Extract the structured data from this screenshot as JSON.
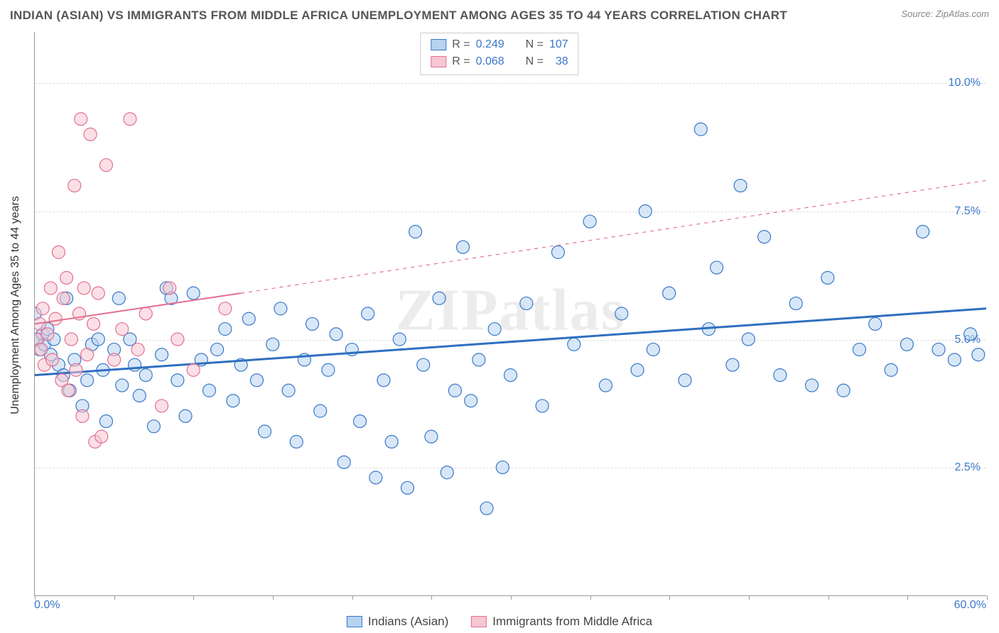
{
  "title": "INDIAN (ASIAN) VS IMMIGRANTS FROM MIDDLE AFRICA UNEMPLOYMENT AMONG AGES 35 TO 44 YEARS CORRELATION CHART",
  "source": "Source: ZipAtlas.com",
  "watermark": "ZIPatlas",
  "y_axis_label": "Unemployment Among Ages 35 to 44 years",
  "x_axis": {
    "min_label": "0.0%",
    "max_label": "60.0%",
    "min": 0,
    "max": 60,
    "label_color": "#3a78c9"
  },
  "y_axis": {
    "min": 0,
    "max": 11,
    "grid_values": [
      2.5,
      5.0,
      7.5,
      10.0
    ],
    "tick_labels": [
      "2.5%",
      "5.0%",
      "7.5%",
      "10.0%"
    ],
    "tick_color": "#3a78c9"
  },
  "legend_top": {
    "rows": [
      {
        "swatch_fill": "#b6d3f0",
        "swatch_border": "#3a78c9",
        "r_label": "R =",
        "r_value": "0.249",
        "n_label": "N =",
        "n_value": "107",
        "value_color": "#3a78c9"
      },
      {
        "swatch_fill": "#f6c6d2",
        "swatch_border": "#e36f91",
        "r_label": "R =",
        "r_value": "0.068",
        "n_label": "N =",
        "n_value": "  38",
        "value_color": "#3a78c9"
      }
    ]
  },
  "legend_bottom": {
    "items": [
      {
        "swatch_fill": "#b6d3f0",
        "swatch_border": "#3a78c9",
        "label": "Indians (Asian)"
      },
      {
        "swatch_fill": "#f6c6d2",
        "swatch_border": "#e36f91",
        "label": "Immigrants from Middle Africa"
      }
    ]
  },
  "chart": {
    "type": "scatter",
    "background_color": "#ffffff",
    "grid_color": "#dddddd",
    "marker_radius": 9,
    "marker_opacity": 0.55,
    "series": [
      {
        "name": "Indians (Asian)",
        "fill": "#b6d3f0",
        "stroke": "#3a78c9",
        "trend": {
          "solid_from": [
            0,
            4.3
          ],
          "solid_to": [
            60,
            5.6
          ],
          "dashed_to": null,
          "color": "#2f6fc0",
          "width": 3
        },
        "points": [
          [
            0.0,
            5.5
          ],
          [
            0.2,
            5.0
          ],
          [
            0.3,
            4.8
          ],
          [
            0.5,
            5.1
          ],
          [
            0.6,
            4.9
          ],
          [
            0.8,
            5.2
          ],
          [
            1.0,
            4.7
          ],
          [
            1.2,
            5.0
          ],
          [
            1.5,
            4.5
          ],
          [
            1.8,
            4.3
          ],
          [
            2.0,
            5.8
          ],
          [
            2.2,
            4.0
          ],
          [
            2.5,
            4.6
          ],
          [
            3.0,
            3.7
          ],
          [
            3.3,
            4.2
          ],
          [
            3.6,
            4.9
          ],
          [
            4.0,
            5.0
          ],
          [
            4.3,
            4.4
          ],
          [
            4.5,
            3.4
          ],
          [
            5.0,
            4.8
          ],
          [
            5.3,
            5.8
          ],
          [
            5.5,
            4.1
          ],
          [
            6.0,
            5.0
          ],
          [
            6.3,
            4.5
          ],
          [
            6.6,
            3.9
          ],
          [
            7.0,
            4.3
          ],
          [
            7.5,
            3.3
          ],
          [
            8.0,
            4.7
          ],
          [
            8.3,
            6.0
          ],
          [
            8.6,
            5.8
          ],
          [
            9.0,
            4.2
          ],
          [
            9.5,
            3.5
          ],
          [
            10.0,
            5.9
          ],
          [
            10.5,
            4.6
          ],
          [
            11.0,
            4.0
          ],
          [
            11.5,
            4.8
          ],
          [
            12.0,
            5.2
          ],
          [
            12.5,
            3.8
          ],
          [
            13.0,
            4.5
          ],
          [
            13.5,
            5.4
          ],
          [
            14.0,
            4.2
          ],
          [
            14.5,
            3.2
          ],
          [
            15.0,
            4.9
          ],
          [
            15.5,
            5.6
          ],
          [
            16.0,
            4.0
          ],
          [
            16.5,
            3.0
          ],
          [
            17.0,
            4.6
          ],
          [
            17.5,
            5.3
          ],
          [
            18.0,
            3.6
          ],
          [
            18.5,
            4.4
          ],
          [
            19.0,
            5.1
          ],
          [
            19.5,
            2.6
          ],
          [
            20.0,
            4.8
          ],
          [
            20.5,
            3.4
          ],
          [
            21.0,
            5.5
          ],
          [
            21.5,
            2.3
          ],
          [
            22.0,
            4.2
          ],
          [
            22.5,
            3.0
          ],
          [
            23.0,
            5.0
          ],
          [
            23.5,
            2.1
          ],
          [
            24.0,
            7.1
          ],
          [
            24.5,
            4.5
          ],
          [
            25.0,
            3.1
          ],
          [
            25.5,
            5.8
          ],
          [
            26.0,
            2.4
          ],
          [
            26.5,
            4.0
          ],
          [
            27.0,
            6.8
          ],
          [
            27.5,
            3.8
          ],
          [
            28.0,
            4.6
          ],
          [
            28.5,
            1.7
          ],
          [
            29.0,
            5.2
          ],
          [
            29.5,
            2.5
          ],
          [
            30.0,
            4.3
          ],
          [
            31.0,
            5.7
          ],
          [
            32.0,
            3.7
          ],
          [
            33.0,
            6.7
          ],
          [
            34.0,
            4.9
          ],
          [
            35.0,
            7.3
          ],
          [
            36.0,
            4.1
          ],
          [
            37.0,
            5.5
          ],
          [
            38.0,
            4.4
          ],
          [
            38.5,
            7.5
          ],
          [
            39.0,
            4.8
          ],
          [
            40.0,
            5.9
          ],
          [
            41.0,
            4.2
          ],
          [
            42.0,
            9.1
          ],
          [
            42.5,
            5.2
          ],
          [
            43.0,
            6.4
          ],
          [
            44.0,
            4.5
          ],
          [
            44.5,
            8.0
          ],
          [
            45.0,
            5.0
          ],
          [
            46.0,
            7.0
          ],
          [
            47.0,
            4.3
          ],
          [
            48.0,
            5.7
          ],
          [
            49.0,
            4.1
          ],
          [
            50.0,
            6.2
          ],
          [
            51.0,
            4.0
          ],
          [
            52.0,
            4.8
          ],
          [
            53.0,
            5.3
          ],
          [
            54.0,
            4.4
          ],
          [
            55.0,
            4.9
          ],
          [
            56.0,
            7.1
          ],
          [
            57.0,
            4.8
          ],
          [
            58.0,
            4.6
          ],
          [
            59.0,
            5.1
          ],
          [
            59.5,
            4.7
          ]
        ]
      },
      {
        "name": "Immigrants from Middle Africa",
        "fill": "#f6c6d2",
        "stroke": "#e36f91",
        "trend": {
          "solid_from": [
            0,
            5.3
          ],
          "solid_to": [
            13,
            5.9
          ],
          "dashed_to": [
            60,
            8.1
          ],
          "color": "#e36f91",
          "width": 2
        },
        "points": [
          [
            0.1,
            5.0
          ],
          [
            0.3,
            5.3
          ],
          [
            0.4,
            4.8
          ],
          [
            0.5,
            5.6
          ],
          [
            0.6,
            4.5
          ],
          [
            0.8,
            5.1
          ],
          [
            1.0,
            6.0
          ],
          [
            1.1,
            4.6
          ],
          [
            1.3,
            5.4
          ],
          [
            1.5,
            6.7
          ],
          [
            1.7,
            4.2
          ],
          [
            1.8,
            5.8
          ],
          [
            2.0,
            6.2
          ],
          [
            2.1,
            4.0
          ],
          [
            2.3,
            5.0
          ],
          [
            2.5,
            8.0
          ],
          [
            2.6,
            4.4
          ],
          [
            2.8,
            5.5
          ],
          [
            2.9,
            9.3
          ],
          [
            3.0,
            3.5
          ],
          [
            3.1,
            6.0
          ],
          [
            3.3,
            4.7
          ],
          [
            3.5,
            9.0
          ],
          [
            3.7,
            5.3
          ],
          [
            3.8,
            3.0
          ],
          [
            4.0,
            5.9
          ],
          [
            4.2,
            3.1
          ],
          [
            4.5,
            8.4
          ],
          [
            5.0,
            4.6
          ],
          [
            5.5,
            5.2
          ],
          [
            6.0,
            9.3
          ],
          [
            6.5,
            4.8
          ],
          [
            7.0,
            5.5
          ],
          [
            8.0,
            3.7
          ],
          [
            8.5,
            6.0
          ],
          [
            9.0,
            5.0
          ],
          [
            10.0,
            4.4
          ],
          [
            12.0,
            5.6
          ]
        ]
      }
    ]
  }
}
